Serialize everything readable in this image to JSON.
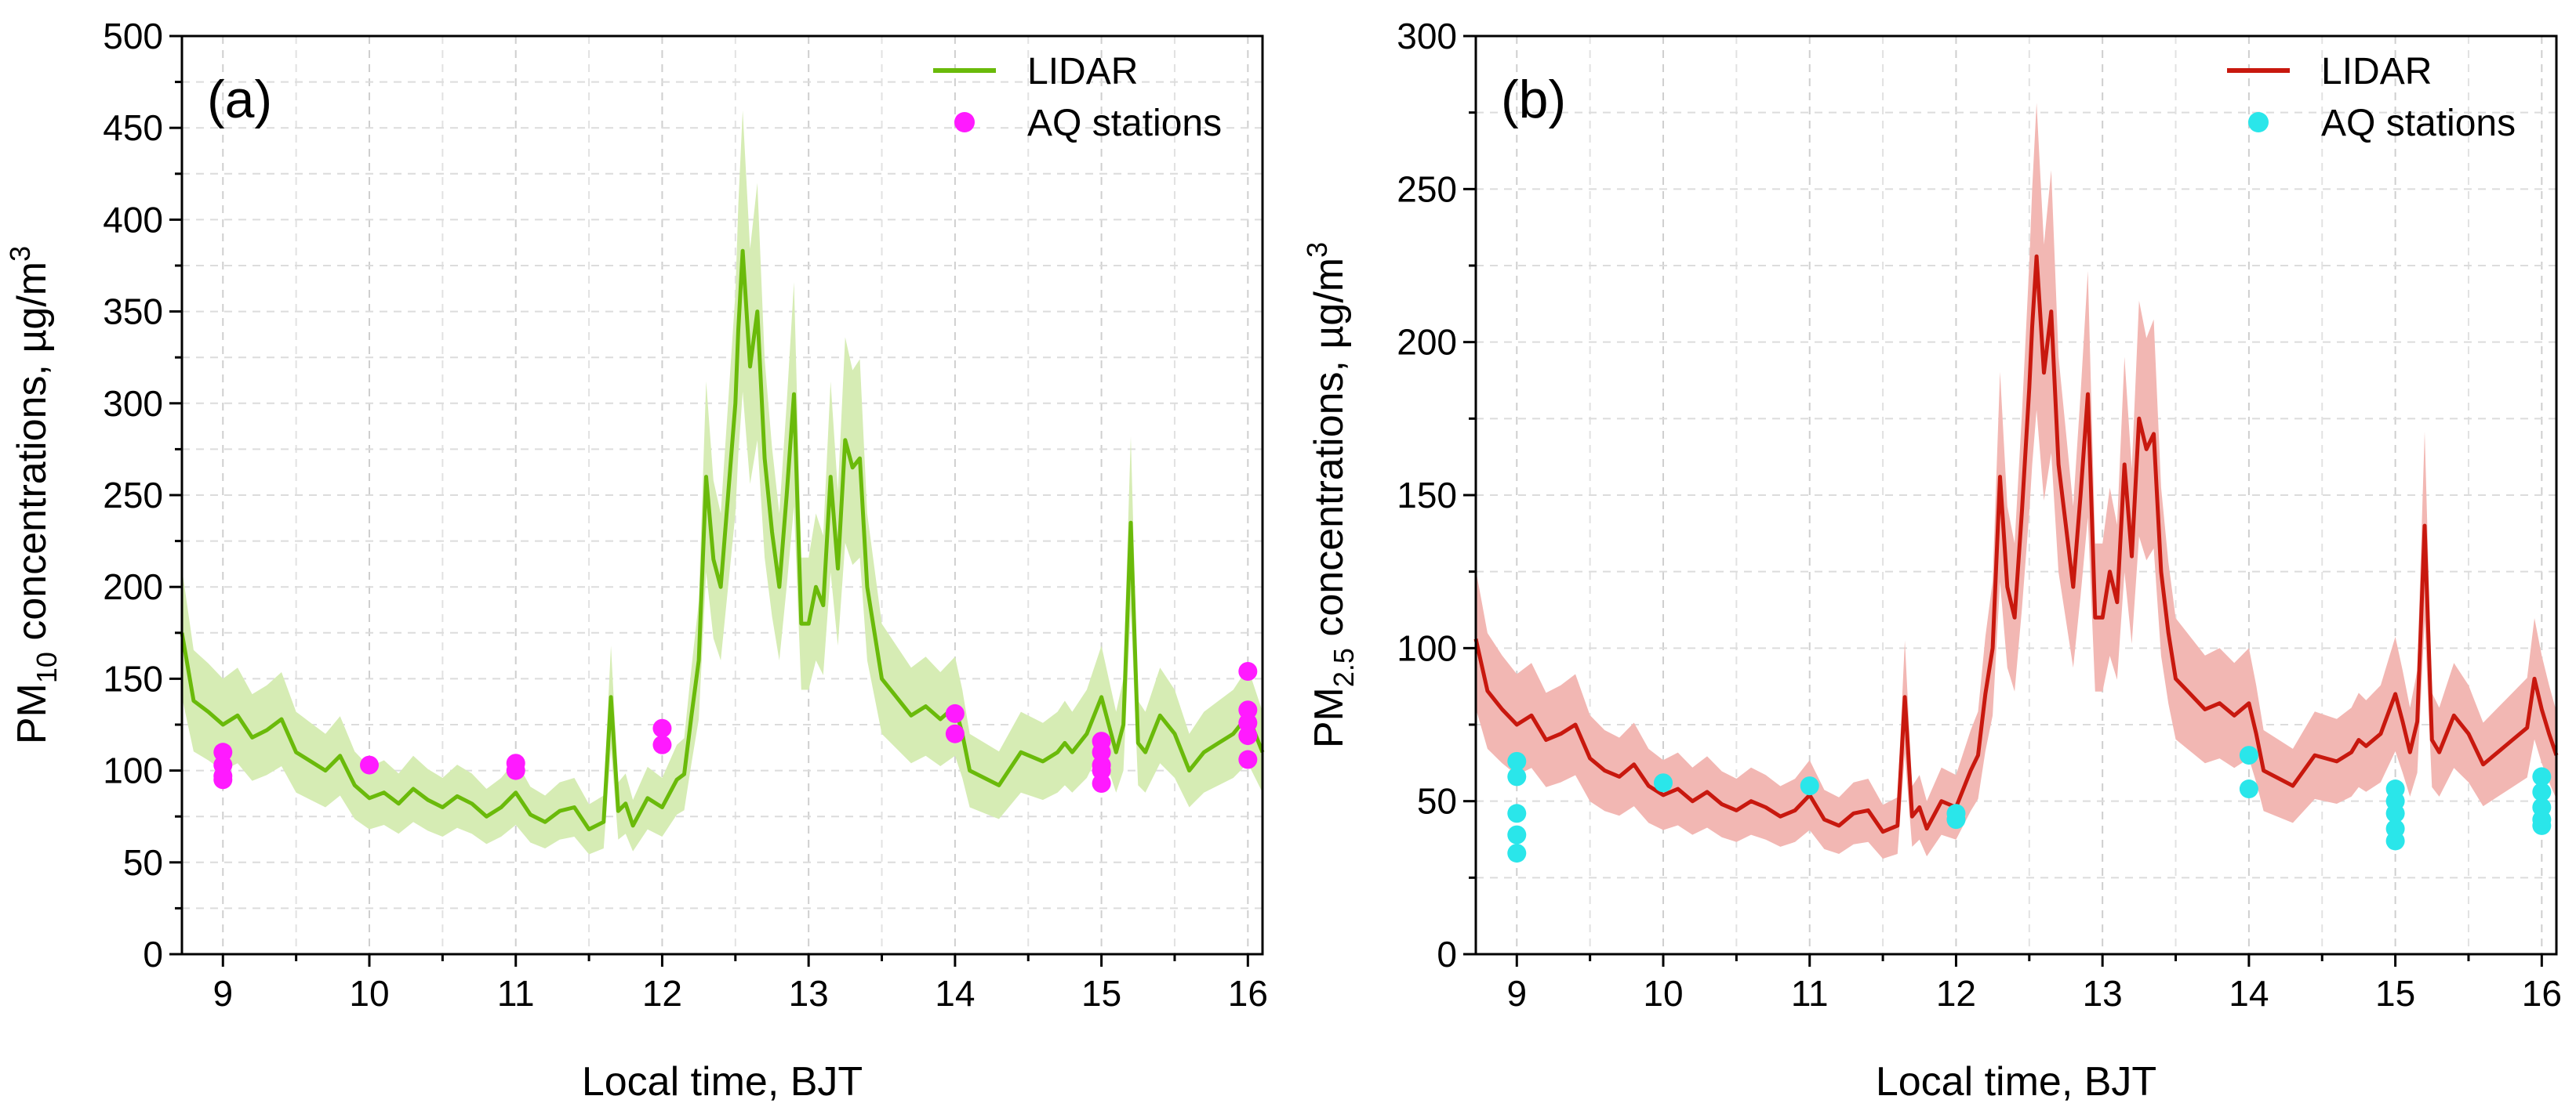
{
  "chart_data": [
    {
      "type": "line",
      "panel_label": "(a)",
      "ylabel_main": "PM",
      "ylabel_sub": "10",
      "ylabel_rest": " concentrations, µg/m",
      "ylabel_sup": "3",
      "xlabel": "Local time, BJT",
      "xlim": [
        8.72,
        16.1
      ],
      "ylim": [
        0,
        500
      ],
      "xticks": [
        9,
        10,
        11,
        12,
        13,
        14,
        15,
        16
      ],
      "yticks": [
        0,
        50,
        100,
        150,
        200,
        250,
        300,
        350,
        400,
        450,
        500
      ],
      "grid": true,
      "legend_position": "top-right",
      "series": [
        {
          "name": "LIDAR",
          "color": "#6aba0a",
          "band_color": "#d6ecb4",
          "band_relative_halfwidth": 0.2,
          "x": [
            8.72,
            8.8,
            8.9,
            9.0,
            9.1,
            9.2,
            9.3,
            9.4,
            9.5,
            9.6,
            9.7,
            9.8,
            9.9,
            10.0,
            10.1,
            10.2,
            10.3,
            10.4,
            10.5,
            10.6,
            10.7,
            10.8,
            10.9,
            11.0,
            11.1,
            11.2,
            11.3,
            11.4,
            11.5,
            11.6,
            11.65,
            11.7,
            11.75,
            11.8,
            11.9,
            12.0,
            12.1,
            12.15,
            12.2,
            12.25,
            12.3,
            12.35,
            12.4,
            12.45,
            12.5,
            12.52,
            12.55,
            12.6,
            12.65,
            12.7,
            12.75,
            12.8,
            12.85,
            12.9,
            12.95,
            13.0,
            13.05,
            13.1,
            13.15,
            13.2,
            13.25,
            13.3,
            13.35,
            13.4,
            13.45,
            13.5,
            13.6,
            13.7,
            13.8,
            13.9,
            14.0,
            14.05,
            14.1,
            14.3,
            14.45,
            14.6,
            14.7,
            14.75,
            14.8,
            14.9,
            15.0,
            15.05,
            15.1,
            15.15,
            15.2,
            15.25,
            15.3,
            15.4,
            15.5,
            15.6,
            15.7,
            15.8,
            15.9,
            15.95,
            16.0,
            16.05,
            16.1
          ],
          "y": [
            175,
            138,
            132,
            125,
            130,
            118,
            122,
            128,
            110,
            105,
            100,
            108,
            92,
            85,
            88,
            82,
            90,
            84,
            80,
            86,
            82,
            75,
            80,
            88,
            76,
            72,
            78,
            80,
            68,
            72,
            140,
            78,
            82,
            70,
            85,
            80,
            95,
            98,
            130,
            160,
            260,
            215,
            200,
            250,
            300,
            340,
            383,
            320,
            350,
            270,
            230,
            200,
            250,
            305,
            180,
            180,
            200,
            190,
            260,
            210,
            280,
            265,
            270,
            200,
            175,
            150,
            140,
            130,
            135,
            128,
            135,
            120,
            100,
            92,
            110,
            105,
            110,
            115,
            110,
            120,
            140,
            125,
            110,
            125,
            235,
            115,
            110,
            130,
            120,
            100,
            110,
            115,
            120,
            125,
            130,
            120,
            110
          ]
        },
        {
          "name": "AQ stations",
          "kind": "scatter",
          "color": "#ff1aff",
          "x": [
            9,
            9,
            9,
            9,
            10,
            11,
            11,
            12,
            12,
            14,
            14,
            15,
            15,
            15,
            15,
            15,
            16,
            16,
            16,
            16,
            16
          ],
          "y": [
            110,
            103,
            97,
            95,
            103,
            104,
            100,
            123,
            114,
            131,
            120,
            116,
            110,
            103,
            100,
            93,
            154,
            133,
            126,
            119,
            106
          ]
        }
      ]
    },
    {
      "type": "line",
      "panel_label": "(b)",
      "ylabel_main": "PM",
      "ylabel_sub": "2.5",
      "ylabel_rest": " concentrations, µg/m",
      "ylabel_sup": "3",
      "xlabel": "Local time, BJT",
      "xlim": [
        8.72,
        16.1
      ],
      "ylim": [
        0,
        300
      ],
      "xticks": [
        9,
        10,
        11,
        12,
        13,
        14,
        15,
        16
      ],
      "yticks": [
        0,
        50,
        100,
        150,
        200,
        250,
        300
      ],
      "grid": true,
      "legend_position": "top-right",
      "series": [
        {
          "name": "LIDAR",
          "color": "#c8180e",
          "band_color": "#f2b7b3",
          "band_relative_halfwidth": 0.22,
          "x": [
            8.72,
            8.8,
            8.9,
            9.0,
            9.1,
            9.2,
            9.3,
            9.4,
            9.5,
            9.6,
            9.7,
            9.8,
            9.9,
            10.0,
            10.1,
            10.2,
            10.3,
            10.4,
            10.5,
            10.6,
            10.7,
            10.8,
            10.9,
            11.0,
            11.1,
            11.2,
            11.3,
            11.4,
            11.5,
            11.6,
            11.65,
            11.7,
            11.75,
            11.8,
            11.9,
            12.0,
            12.1,
            12.15,
            12.2,
            12.25,
            12.3,
            12.35,
            12.4,
            12.45,
            12.5,
            12.52,
            12.55,
            12.6,
            12.65,
            12.7,
            12.75,
            12.8,
            12.85,
            12.9,
            12.95,
            13.0,
            13.05,
            13.1,
            13.15,
            13.2,
            13.25,
            13.3,
            13.35,
            13.4,
            13.45,
            13.5,
            13.6,
            13.7,
            13.8,
            13.9,
            14.0,
            14.05,
            14.1,
            14.3,
            14.45,
            14.6,
            14.7,
            14.75,
            14.8,
            14.9,
            15.0,
            15.05,
            15.1,
            15.15,
            15.2,
            15.25,
            15.3,
            15.4,
            15.5,
            15.6,
            15.7,
            15.8,
            15.9,
            15.95,
            16.0,
            16.05,
            16.1
          ],
          "y": [
            103,
            86,
            80,
            75,
            78,
            70,
            72,
            75,
            64,
            60,
            58,
            62,
            55,
            52,
            54,
            50,
            53,
            49,
            47,
            50,
            48,
            45,
            47,
            52,
            44,
            42,
            46,
            47,
            40,
            42,
            84,
            45,
            48,
            41,
            50,
            48,
            60,
            65,
            85,
            100,
            156,
            120,
            110,
            145,
            185,
            205,
            228,
            190,
            210,
            160,
            140,
            120,
            150,
            183,
            110,
            110,
            125,
            115,
            160,
            130,
            175,
            165,
            170,
            125,
            105,
            90,
            85,
            80,
            82,
            78,
            82,
            72,
            60,
            55,
            65,
            63,
            66,
            70,
            68,
            72,
            85,
            76,
            66,
            76,
            140,
            70,
            66,
            78,
            72,
            62,
            66,
            70,
            74,
            90,
            80,
            72,
            65
          ]
        },
        {
          "name": "AQ stations",
          "kind": "scatter",
          "color": "#2ae6ea",
          "x": [
            9,
            9,
            9,
            9,
            9,
            10,
            11,
            12,
            12,
            14,
            14,
            15,
            15,
            15,
            15,
            15,
            16,
            16,
            16,
            16,
            16
          ],
          "y": [
            63,
            58,
            46,
            39,
            33,
            56,
            55,
            46,
            44,
            65,
            54,
            54,
            50,
            46,
            41,
            37,
            58,
            53,
            48,
            44,
            42
          ]
        }
      ]
    }
  ]
}
